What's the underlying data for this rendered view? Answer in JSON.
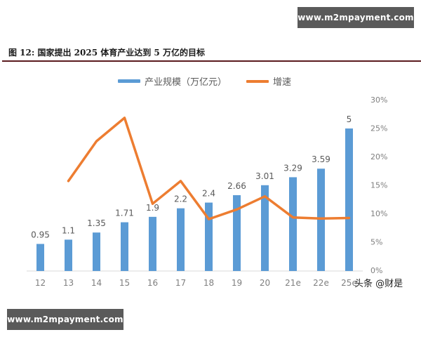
{
  "watermarks": {
    "top": "www.m2mpayment.com",
    "bottom": "www.m2mpayment.com"
  },
  "figure_title": "图 12: 国家提出 2025 体育产业达到 5 万亿的目标",
  "legend": {
    "bar_label": "产业规模（万亿元）",
    "line_label": "增速"
  },
  "credit": "头条 @财是",
  "colors": {
    "bar": "#5b9bd5",
    "line": "#ed7d31",
    "title_rule": "#5b1b1f",
    "axis_text": "#7f7f7f"
  },
  "chart_data": {
    "type": "bar",
    "title": "图 12: 国家提出 2025 体育产业达到 5 万亿的目标",
    "categories": [
      "12",
      "13",
      "14",
      "15",
      "16",
      "17",
      "18",
      "19",
      "20",
      "21e",
      "22e",
      "25e"
    ],
    "series": [
      {
        "name": "产业规模（万亿元）",
        "type": "bar",
        "axis": "left",
        "values": [
          0.95,
          1.1,
          1.35,
          1.71,
          1.9,
          2.2,
          2.4,
          2.66,
          3.01,
          3.29,
          3.59,
          5
        ],
        "data_labels": [
          "0.95",
          "1.1",
          "1.35",
          "1.71",
          "1.9",
          "2.2",
          "2.4",
          "2.66",
          "3.01",
          "3.29",
          "3.59",
          "5"
        ]
      },
      {
        "name": "增速",
        "type": "line",
        "axis": "right",
        "values": [
          null,
          15.7,
          22.7,
          26.8,
          11.7,
          15.7,
          9.0,
          10.7,
          13.0,
          9.3,
          9.1,
          9.2
        ]
      }
    ],
    "xlabel": "",
    "ylabel": "",
    "y_left_range": [
      0,
      6
    ],
    "y_right_range": [
      0,
      30
    ],
    "y_right_ticks": [
      "0%",
      "5%",
      "10%",
      "15%",
      "20%",
      "25%",
      "30%"
    ],
    "left_axis_visible": false,
    "grid": false,
    "legend_position": "top"
  }
}
